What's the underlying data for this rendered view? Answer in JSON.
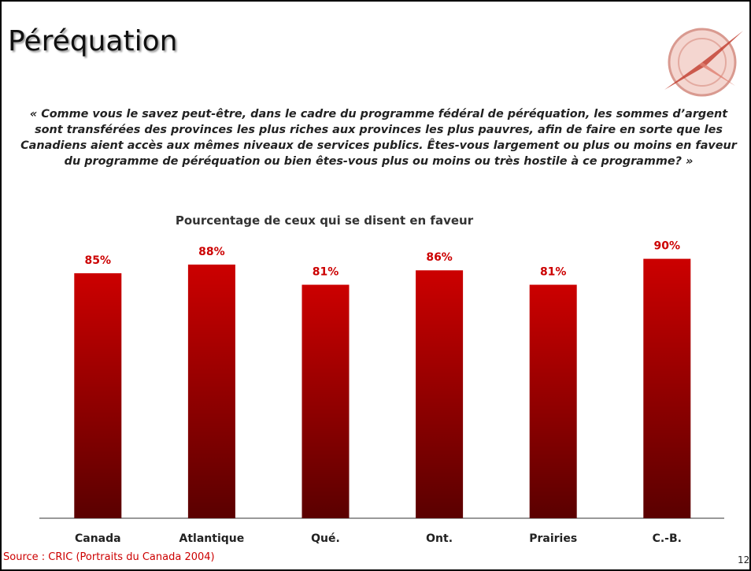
{
  "slide": {
    "title": "Péréquation",
    "question": "« Comme vous le savez peut-être, dans le cadre du programme fédéral de péréquation, les sommes d’argent sont transférées des provinces les plus riches aux provinces les plus pauvres, afin de faire en sorte que les Canadiens aient accès aux mêmes niveaux de services publics. Êtes-vous largement ou plus ou moins en faveur du programme de péréquation ou bien êtes-vous plus ou moins ou très hostile à ce programme? »",
    "source": "Source : CRIC (Portraits du Canada 2004)",
    "page": "12"
  },
  "chart_data": {
    "type": "bar",
    "title": "Pourcentage de ceux qui se disent en faveur",
    "categories": [
      "Canada",
      "Atlantique",
      "Qué.",
      "Ont.",
      "Prairies",
      "C.-B."
    ],
    "values": [
      85,
      88,
      81,
      86,
      81,
      90
    ],
    "value_labels": [
      "85%",
      "88%",
      "81%",
      "86%",
      "81%",
      "90%"
    ],
    "color": "#cc0000"
  }
}
